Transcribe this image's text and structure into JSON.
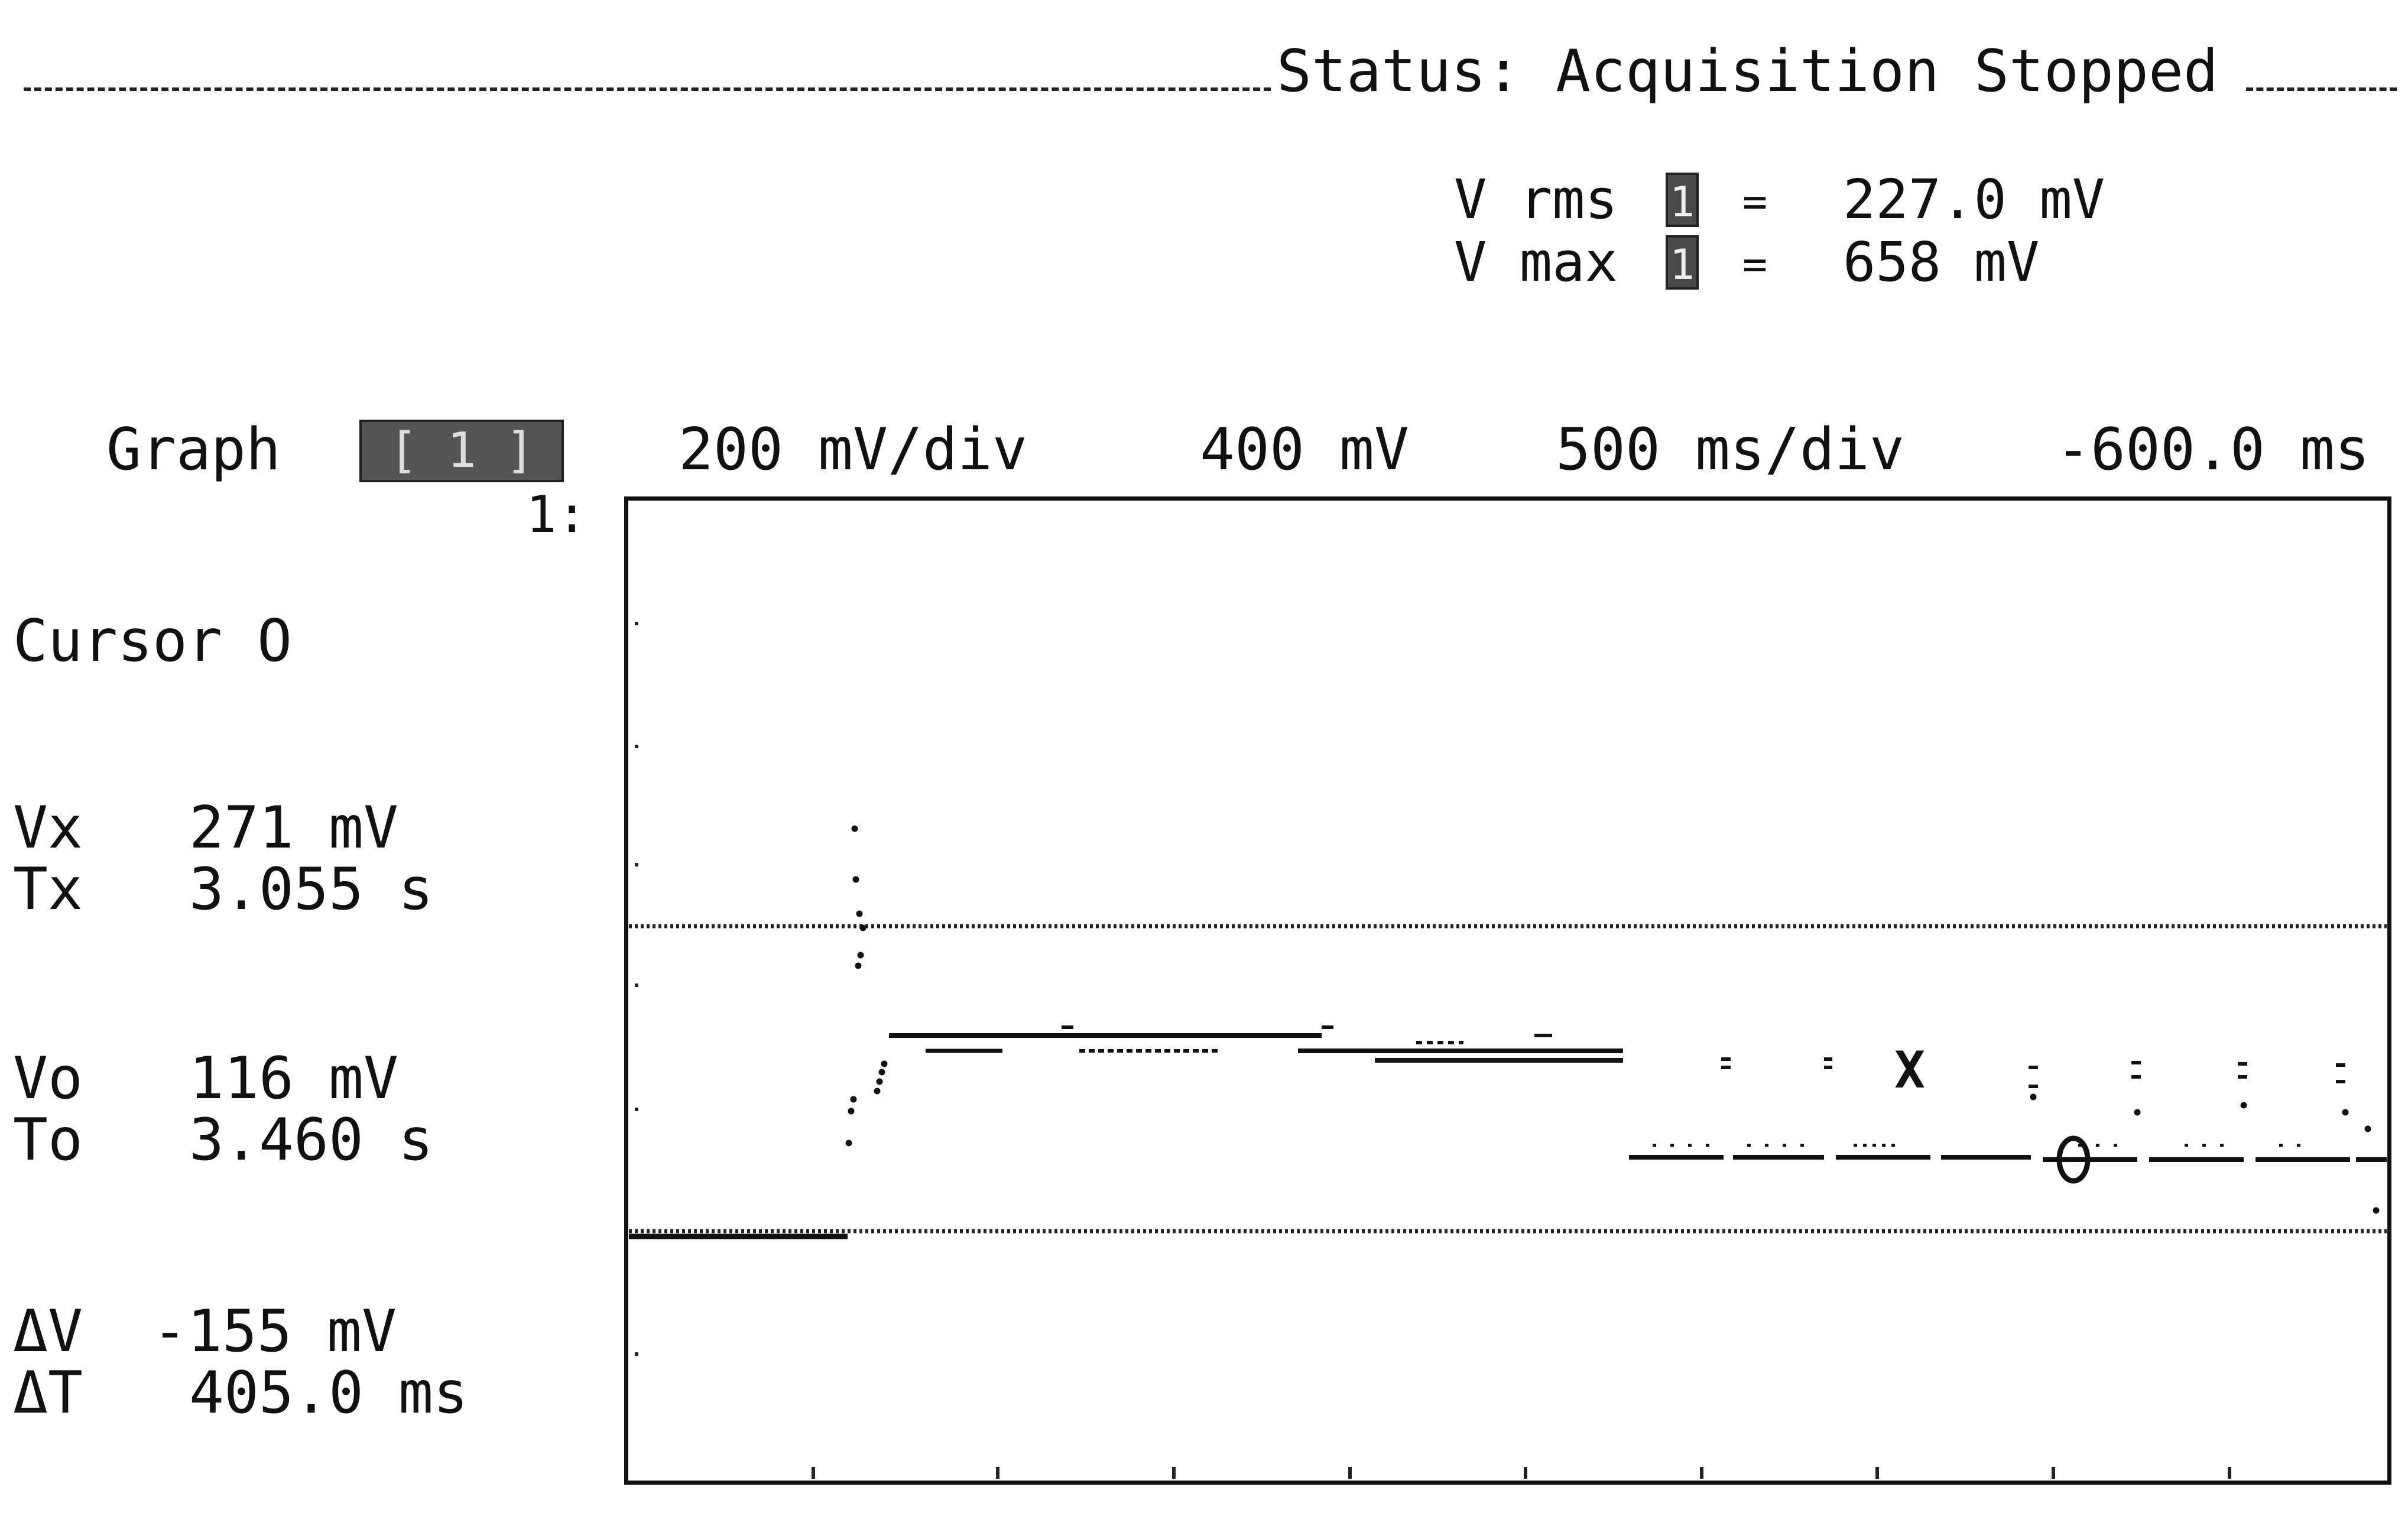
{
  "status": {
    "label": "Status:",
    "value": "Acquisition Stopped"
  },
  "measurements": [
    {
      "label": "V rms",
      "channel": "1",
      "equals": "=",
      "value": "227.0 mV"
    },
    {
      "label": "V max",
      "channel": "1",
      "equals": "=",
      "value": "658 mV"
    }
  ],
  "graph": {
    "label": "Graph",
    "selected": "[ 1 ]",
    "volts_per_div": "200 mV/div",
    "offset": "400 mV",
    "time_per_div": "500 ms/div",
    "delay": "-600.0 ms",
    "channel_marker": "1:"
  },
  "cursor": {
    "title": "Cursor O",
    "vx_label": "Vx",
    "vx_value": "271 mV",
    "tx_label": "Tx",
    "tx_value": "3.055 s",
    "vo_label": "Vo",
    "vo_value": "116 mV",
    "to_label": "To",
    "to_value": "3.460 s",
    "dv_label": "ΔV",
    "dv_value": "-155 mV",
    "dt_label": "ΔT",
    "dt_value": "405.0 ms"
  },
  "markers": {
    "x_marker": "X",
    "o_marker": "O"
  },
  "colors": {
    "trace": "#111111",
    "background": "#ffffff",
    "highlight_box": "#4a4a4a"
  }
}
